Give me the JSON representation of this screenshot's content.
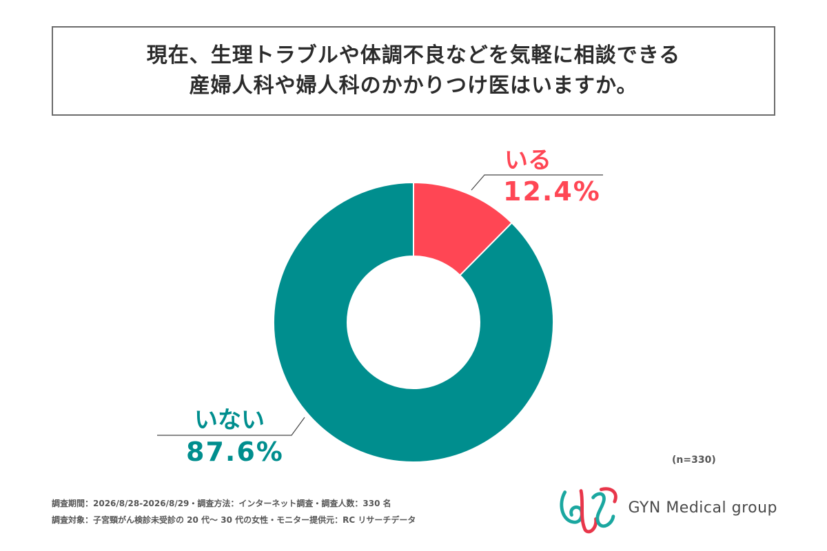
{
  "title": {
    "line1": "現在、生理トラブルや体調不良などを気軽に相談できる",
    "line2": "産婦人科や婦人科のかかりつけ医はいますか。"
  },
  "chart_data": {
    "type": "pie",
    "donut": true,
    "slices": [
      {
        "label": "いる",
        "value": 12.4,
        "display": "12.4%",
        "color": "#ff4654"
      },
      {
        "label": "いない",
        "value": 87.6,
        "display": "87.6%",
        "color": "#008e8e"
      }
    ],
    "legend": "none"
  },
  "sample_note": "(n=330)",
  "footnotes": {
    "line1": "調査期間：2026/8/28-2026/8/29・調査方法：インターネット調査・調査人数：330 名",
    "line2": "調査対象：子宮頸がん検診未受診の 20 代〜 30 代の女性・モニター提供元：RC リサーチデータ"
  },
  "logo": {
    "text": "GYN Medical group",
    "colors": {
      "teal": "#1aa7a0",
      "red": "#e8364a"
    }
  }
}
